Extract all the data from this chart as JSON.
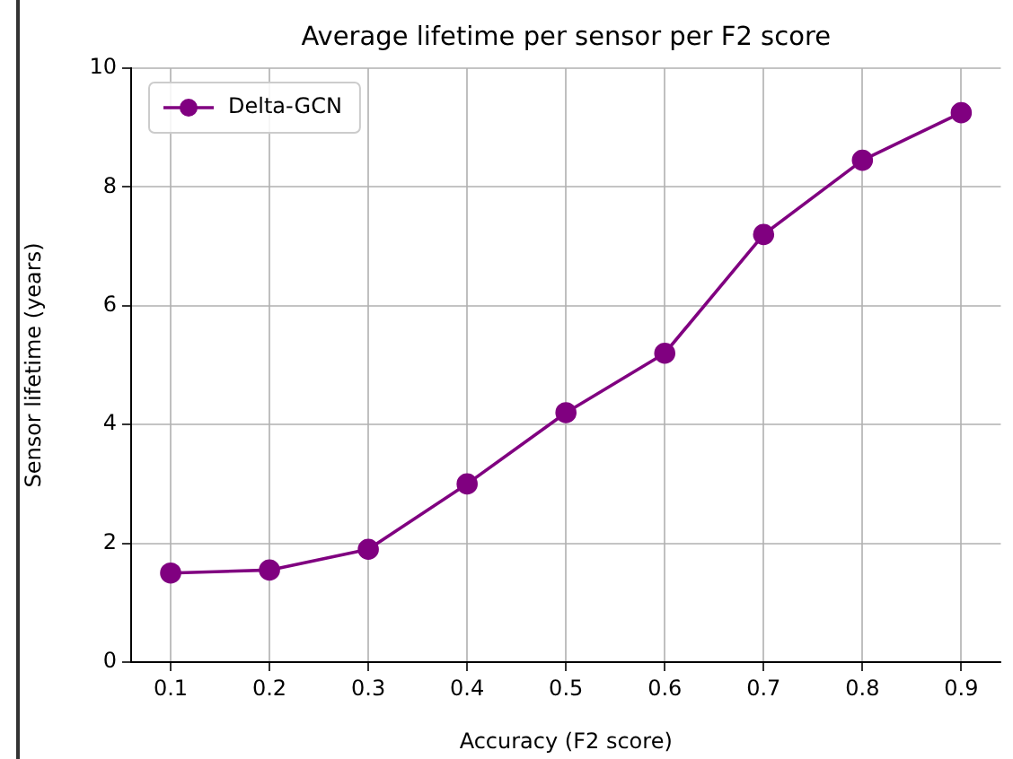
{
  "chart_data": {
    "type": "line",
    "title": "Average lifetime per sensor per F2 score",
    "xlabel": "Accuracy (F2 score)",
    "ylabel": "Sensor lifetime (years)",
    "x": [
      0.1,
      0.2,
      0.3,
      0.4,
      0.5,
      0.6,
      0.7,
      0.8,
      0.9
    ],
    "series": [
      {
        "name": "Delta-GCN",
        "color": "#800080",
        "values": [
          1.5,
          1.55,
          1.9,
          3.0,
          4.2,
          5.2,
          7.2,
          8.45,
          9.25
        ]
      }
    ],
    "xlim": [
      0.06,
      0.94
    ],
    "xticks": [
      0.1,
      0.2,
      0.3,
      0.4,
      0.5,
      0.6,
      0.7,
      0.8,
      0.9
    ],
    "ylim": [
      0,
      10
    ],
    "yticks": [
      0,
      2,
      4,
      6,
      8,
      10
    ],
    "grid": true,
    "legend": "top left",
    "marker": "circle",
    "line_style": "solid"
  }
}
